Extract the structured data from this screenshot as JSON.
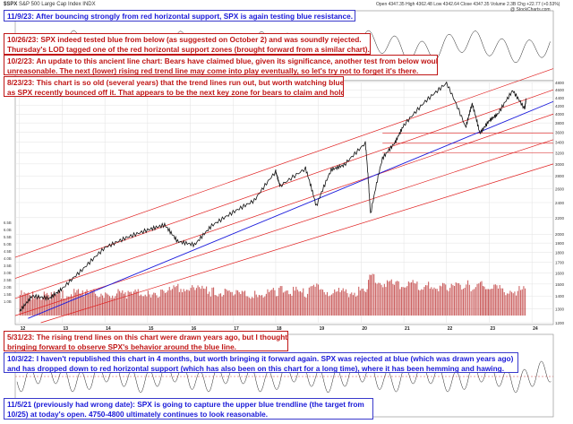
{
  "header": {
    "ticker": "$SPX",
    "name": "S&P 500 Large Cap Index",
    "exchange": "INDX",
    "quote": "Open 4347.35  High 4362.48  Low 4342.64  Close 4347.35  Volume 2.3B  Chg +22.77 (+0.53%)",
    "watermark": "@ StockCharts.com"
  },
  "annotations": [
    {
      "id": "n1",
      "color": "blue",
      "lines": [
        "11/9/23:  After bouncing strongly from red horizontal support, SPX is again testing blue resistance."
      ]
    },
    {
      "id": "n2",
      "color": "red",
      "lines": [
        "10/26/23:  SPX indeed tested blue from below (as suggested on October 2) and was soundly rejected.",
        "Thursday's LOD tagged one of the red horizontal support zones (brought forward from a similar chart)."
      ]
    },
    {
      "id": "n3",
      "color": "red",
      "lines": [
        "10/2/23:  An update to this ancient line chart:  Bears have claimed blue, given its significance, another test from below would not be",
        "unreasonable.  The next (lower) rising red trend line may come into play eventually, so let's try not to forget it's there."
      ]
    },
    {
      "id": "n4",
      "color": "red",
      "lines": [
        "8/23/23:  This chart is so old (several years) that the trend lines run out, but worth watching blue again,",
        "as SPX recently bounced off it.  That appears to be the next key zone for bears to claim and hold."
      ]
    },
    {
      "id": "n5",
      "color": "red",
      "lines": [
        "5/31/23:  The rising trend lines on this chart were drawn years ago, but I thought it worth",
        "bringing forward to observe SPX's behavior around the blue line."
      ]
    },
    {
      "id": "n6",
      "color": "blue",
      "lines": [
        "10/3/22:  I haven't republished this chart in 4 months, but worth bringing it forward again.  SPX was rejected at blue (which was drawn years ago)",
        "and has dropped down to red horizontal support (which has also been on this chart for a long time), where it has been hemming and hawing."
      ]
    },
    {
      "id": "n7",
      "color": "blue",
      "lines": [
        "11/5/21 (previously had wrong date):  SPX is going to capture the upper blue trendline (the target from",
        "10/25) at today's open.  4750-4800 ultimately continues to look reasonable."
      ]
    }
  ],
  "colors": {
    "blue_note": "#1a1ad8",
    "red_note": "#c01616",
    "blue_line": "#1c1cdc",
    "red_line": "#e02020",
    "price": "#111111",
    "volume": "#b01010"
  },
  "chart_data": {
    "type": "line",
    "title": "$SPX S&P 500 Large Cap Index INDX",
    "x_tick_labels": [
      "12",
      "13",
      "14",
      "15",
      "16",
      "17",
      "18",
      "19",
      "20",
      "21",
      "22",
      "23",
      "24"
    ],
    "y_tick_labels": [
      "4800",
      "4600",
      "4400",
      "4200",
      "4000",
      "3800",
      "3600",
      "3400",
      "3200",
      "3000",
      "2800",
      "2600",
      "2400",
      "2200",
      "2000",
      "1900",
      "1800",
      "1700",
      "1600",
      "1500",
      "1400",
      "1300",
      "1200"
    ],
    "volume_tick_labels": [
      "6.5B",
      "6.0B",
      "5.5B",
      "5.0B",
      "4.5B",
      "4.0B",
      "3.5B",
      "3.0B",
      "2.5B",
      "2.0B",
      "1.5B",
      "1.0B"
    ],
    "log_scale": true,
    "grid": true,
    "series": [
      {
        "name": "$SPX",
        "x": [
          2012.0,
          2012.3,
          2012.7,
          2013.0,
          2013.5,
          2014.0,
          2014.5,
          2015.0,
          2015.4,
          2015.7,
          2016.1,
          2016.5,
          2017.0,
          2017.5,
          2018.0,
          2018.1,
          2018.7,
          2018.95,
          2019.3,
          2019.6,
          2020.1,
          2020.22,
          2020.5,
          2020.8,
          2021.0,
          2021.5,
          2022.0,
          2022.45,
          2022.6,
          2022.78,
          2023.0,
          2023.2,
          2023.55,
          2023.83,
          2023.86
        ],
        "values": [
          1280,
          1400,
          1380,
          1460,
          1640,
          1850,
          1960,
          2050,
          2110,
          1920,
          1880,
          2100,
          2270,
          2430,
          2870,
          2640,
          2920,
          2350,
          2900,
          2980,
          3380,
          2240,
          3100,
          3400,
          3750,
          4300,
          4780,
          3700,
          4250,
          3580,
          3850,
          4000,
          4580,
          4120,
          4360
        ]
      }
    ],
    "volume": [
      3.2,
      3.0,
      3.1,
      3.4,
      3.3,
      3.5,
      3.2,
      3.6,
      3.5,
      4.2,
      4.0,
      3.7,
      3.3,
      3.2,
      3.6,
      4.1,
      3.4,
      4.3,
      3.6,
      3.5,
      3.8,
      6.2,
      5.1,
      4.7,
      4.9,
      4.6,
      4.3,
      4.8,
      4.4,
      4.7,
      4.2,
      4.1,
      3.8,
      3.9,
      3.7
    ],
    "ylim": [
      1200,
      4800
    ],
    "xlim": [
      2011.9,
      2024.5
    ]
  }
}
